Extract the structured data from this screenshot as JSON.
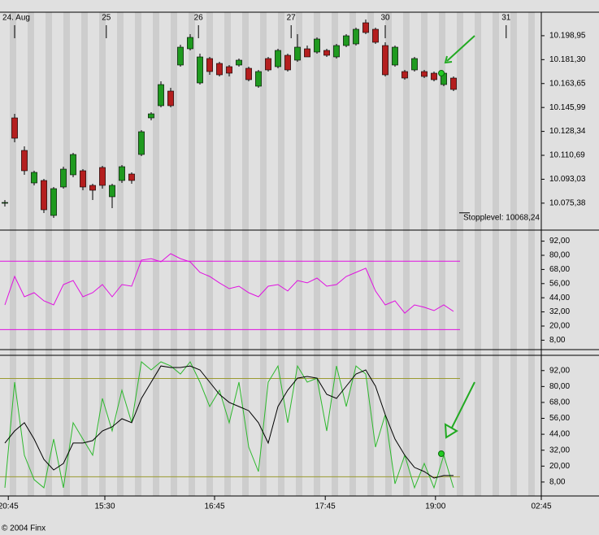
{
  "footer": "© 2004 Finx",
  "chart_data": [
    {
      "type": "candlestick",
      "x": [
        1,
        3,
        5,
        7,
        9,
        11,
        13,
        15,
        17,
        19,
        21,
        23,
        25,
        27,
        29,
        31,
        33,
        35,
        37,
        39,
        41,
        43,
        45,
        47,
        49,
        51,
        53,
        55,
        57,
        59,
        61,
        63,
        65,
        67,
        69,
        71,
        73,
        75,
        77,
        79,
        81,
        83,
        85,
        87,
        89,
        91,
        93
      ],
      "open": [
        10075.3,
        10138.3,
        10114.3,
        10090.3,
        10092.1,
        10066.3,
        10087.3,
        10096.3,
        10099.3,
        10088.5,
        10101.7,
        10080.1,
        10092.1,
        10096.9,
        10111.3,
        10138.3,
        10147.3,
        10158.1,
        10177.3,
        10189.3,
        10164.1,
        10182.1,
        10178.5,
        10176.1,
        10177.3,
        10174.9,
        10161.7,
        10182.1,
        10176.1,
        10184.5,
        10180.9,
        10189.3,
        10186.9,
        10188.1,
        10183.3,
        10191.7,
        10192.9,
        10208.5,
        10203.7,
        10191.7,
        10177.3,
        10172.5,
        10173.7,
        10172.5,
        10171.3,
        10162.9,
        10167.7
      ],
      "high": [
        10077.7,
        10141.3,
        10117.3,
        10099.3,
        10093.3,
        10087.3,
        10102.3,
        10112.5,
        10100.5,
        10089.7,
        10102.9,
        10089.7,
        10103.5,
        10098.1,
        10129.3,
        10142.5,
        10165.3,
        10160.5,
        10192.3,
        10200.1,
        10185.7,
        10183.3,
        10179.7,
        10177.3,
        10182.1,
        10176.1,
        10173.7,
        10183.3,
        10189.3,
        10185.7,
        10200.1,
        10191.7,
        10197.7,
        10189.3,
        10192.9,
        10200.1,
        10204.9,
        10210.9,
        10204.9,
        10194.1,
        10191.7,
        10173.7,
        10183.3,
        10173.7,
        10172.5,
        10172.5,
        10168.9
      ],
      "low": [
        10072.9,
        10120.3,
        10096.3,
        10088.5,
        10068.1,
        10064.5,
        10086.1,
        10094.5,
        10084.9,
        10077.7,
        10086.1,
        10071.7,
        10090.3,
        10089.7,
        10110.1,
        10136.5,
        10146.1,
        10146.1,
        10176.1,
        10188.1,
        10162.9,
        10170.1,
        10168.9,
        10168.9,
        10176.1,
        10165.3,
        10160.5,
        10172.5,
        10174.9,
        10172.5,
        10179.7,
        10183.3,
        10185.7,
        10183.3,
        10182.1,
        10190.5,
        10191.7,
        10200.1,
        10192.9,
        10168.9,
        10176.1,
        10166.5,
        10172.5,
        10167.7,
        10165.3,
        10161.7,
        10158.1
      ],
      "close": [
        10075.9,
        10123.3,
        10099.3,
        10098.1,
        10070.5,
        10086.1,
        10100.5,
        10111.3,
        10087.3,
        10084.9,
        10088.5,
        10088.5,
        10102.3,
        10092.1,
        10128.1,
        10141.3,
        10162.9,
        10147.3,
        10190.5,
        10197.7,
        10183.3,
        10172.5,
        10170.1,
        10171.3,
        10180.9,
        10166.5,
        10172.5,
        10173.7,
        10188.1,
        10173.7,
        10190.5,
        10183.3,
        10196.5,
        10184.5,
        10191.7,
        10198.9,
        10203.7,
        10201.3,
        10194.1,
        10170.1,
        10190.5,
        10167.7,
        10182.1,
        10168.9,
        10166.5,
        10171.3,
        10159.3
      ],
      "up_color": "#1f9a1f",
      "down_color": "#b41e1e",
      "xlim": [
        0,
        111
      ],
      "xticks": [
        {
          "value": 3,
          "label": "24. Aug"
        },
        {
          "value": 21.8,
          "label": "25"
        },
        {
          "value": 40.7,
          "label": "26"
        },
        {
          "value": 59.7,
          "label": "27"
        },
        {
          "value": 79,
          "label": "30"
        },
        {
          "value": 103.8,
          "label": "31"
        }
      ],
      "ylim": [
        10055.5,
        10216.3
      ],
      "yticks": [
        {
          "value": 10198.95,
          "label": "10.198,95"
        },
        {
          "value": 10181.3,
          "label": "10.181,30"
        },
        {
          "value": 10163.65,
          "label": "10.163,65"
        },
        {
          "value": 10145.99,
          "label": "10.145,99"
        },
        {
          "value": 10128.34,
          "label": "10.128,34"
        },
        {
          "value": 10110.69,
          "label": "10.110,69"
        },
        {
          "value": 10093.03,
          "label": "10.093,03"
        },
        {
          "value": 10075.38,
          "label": "10.075,38"
        }
      ],
      "stop_level": {
        "value": 10068.24,
        "label": "Stopplevel: 10068,24"
      }
    },
    {
      "type": "line",
      "x": [
        1,
        3,
        5,
        7,
        9,
        11,
        13,
        15,
        17,
        19,
        21,
        23,
        25,
        27,
        29,
        31,
        33,
        35,
        37,
        39,
        41,
        43,
        45,
        47,
        49,
        51,
        53,
        55,
        57,
        59,
        61,
        63,
        65,
        67,
        69,
        71,
        73,
        75,
        77,
        79,
        81,
        83,
        85,
        87,
        89,
        91,
        93
      ],
      "series": [
        {
          "color": "#e010e0",
          "values": [
            37.9,
            62.1,
            44.8,
            48.3,
            41.4,
            37.9,
            55.2,
            58.6,
            44.8,
            48.3,
            55.2,
            44.8,
            55.2,
            53.8,
            75.9,
            77.2,
            74.5,
            81.4,
            77.2,
            74.5,
            65.5,
            62.1,
            56.6,
            51.7,
            53.8,
            48.3,
            44.8,
            53.8,
            55.2,
            49.7,
            58.6,
            56.6,
            60.7,
            53.8,
            55.2,
            62.1,
            65.5,
            69.0,
            49.7,
            37.9,
            41.4,
            31.0,
            37.9,
            35.9,
            33.1,
            37.9,
            32.4
          ]
        }
      ],
      "levels": [
        75,
        17
      ],
      "level_color": "#e010e0",
      "xlim": [
        0,
        111
      ],
      "ylim": [
        0,
        100
      ],
      "yticks": [
        {
          "value": 92,
          "label": "92,00"
        },
        {
          "value": 80,
          "label": "80,00"
        },
        {
          "value": 68,
          "label": "68,00"
        },
        {
          "value": 56,
          "label": "56,00"
        },
        {
          "value": 44,
          "label": "44,00"
        },
        {
          "value": 32,
          "label": "32,00"
        },
        {
          "value": 20,
          "label": "20,00"
        },
        {
          "value": 8,
          "label": "8,00"
        }
      ]
    },
    {
      "type": "line",
      "x": [
        1,
        3,
        5,
        7,
        9,
        11,
        13,
        15,
        17,
        19,
        21,
        23,
        25,
        27,
        29,
        31,
        33,
        35,
        37,
        39,
        41,
        43,
        45,
        47,
        49,
        51,
        53,
        55,
        57,
        59,
        61,
        63,
        65,
        67,
        69,
        71,
        73,
        75,
        77,
        79,
        81,
        83,
        85,
        87,
        89,
        91,
        93
      ],
      "series": [
        {
          "color": "#2db82d",
          "values": [
            3.7,
            83.3,
            28.2,
            9.8,
            3.7,
            40.4,
            3.7,
            52.7,
            40.4,
            28.2,
            71.0,
            46.5,
            77.2,
            52.7,
            98.6,
            92.5,
            98.6,
            95.5,
            89.4,
            98.6,
            83.3,
            64.9,
            77.2,
            52.7,
            83.3,
            34.3,
            15.9,
            83.3,
            95.5,
            52.7,
            95.5,
            83.3,
            86.3,
            46.5,
            95.5,
            64.9,
            95.5,
            89.4,
            34.3,
            58.8,
            6.7,
            28.2,
            3.7,
            22.0,
            3.7,
            28.2,
            3.7
          ]
        },
        {
          "color": "#000000",
          "values": [
            37.4,
            46.5,
            52.7,
            40.4,
            25.1,
            17.1,
            22.0,
            37.4,
            37.4,
            39.2,
            46.5,
            49.6,
            55.7,
            52.7,
            71.0,
            83.3,
            95.5,
            94.3,
            94.3,
            95.5,
            92.5,
            83.3,
            74.1,
            68.0,
            64.9,
            61.8,
            52.7,
            37.4,
            64.9,
            77.2,
            86.3,
            87.6,
            86.3,
            74.1,
            71.0,
            80.2,
            89.4,
            92.5,
            80.2,
            58.8,
            40.4,
            28.2,
            19.0,
            15.9,
            11.0,
            12.9,
            12.9
          ]
        }
      ],
      "levels": [
        86,
        12
      ],
      "level_color": "#9a9a30",
      "xlim": [
        0,
        111
      ],
      "xticks": [
        {
          "value": 1.7,
          "label": "20:45"
        },
        {
          "value": 21.5,
          "label": "15:30"
        },
        {
          "value": 44,
          "label": "16:45"
        },
        {
          "value": 66.7,
          "label": "17:45"
        },
        {
          "value": 89.3,
          "label": "19:00"
        },
        {
          "value": 111,
          "label": "02:45"
        }
      ],
      "ylim": [
        -2.5,
        103.5
      ],
      "yticks": [
        {
          "value": 92,
          "label": "92,00"
        },
        {
          "value": 80,
          "label": "80,00"
        },
        {
          "value": 68,
          "label": "68,00"
        },
        {
          "value": 56,
          "label": "56,00"
        },
        {
          "value": 44,
          "label": "44,00"
        },
        {
          "value": 32,
          "label": "32,00"
        },
        {
          "value": 20,
          "label": "20,00"
        },
        {
          "value": 8,
          "label": "8,00"
        }
      ]
    }
  ]
}
